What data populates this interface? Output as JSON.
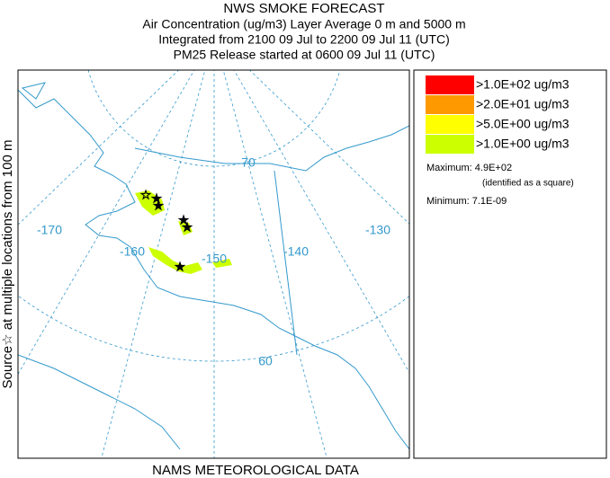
{
  "header": {
    "lines": [
      "NWS SMOKE FORECAST",
      "Air Concentration (ug/m3) Layer Average    0 m and  5000 m",
      "Integrated from 2100 09 Jul to 2200 09 Jul 11 (UTC)",
      "PM25 Release started at 0600 09 Jul 11 (UTC)"
    ]
  },
  "side_label": "Source☆ at multiple locations   from   100 m",
  "footer": "NAMS METEOROLOGICAL DATA",
  "legend": {
    "items": [
      {
        "label": ">1.0E+02 ug/m3",
        "color": "#ff0000"
      },
      {
        "label": ">2.0E+01 ug/m3",
        "color": "#ff9900"
      },
      {
        "label": ">5.0E+00 ug/m3",
        "color": "#ffff00"
      },
      {
        "label": ">1.0E+00 ug/m3",
        "color": "#ccff00"
      }
    ],
    "maximum": "Maximum: 4.9E+02",
    "max_note": "(identified as a square)",
    "minimum": "Minimum: 7.1E-09"
  },
  "map": {
    "labels": [
      "70",
      "-170",
      "-160",
      "-150",
      "-140",
      "-130",
      "60"
    ]
  }
}
